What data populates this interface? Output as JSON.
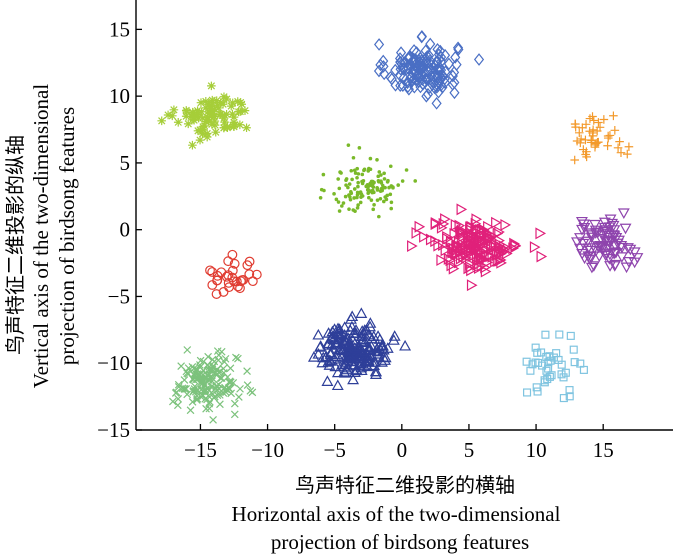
{
  "chart_data": {
    "type": "scatter",
    "title": "",
    "xlabel_cn": "鸟声特征二维投影的横轴",
    "xlabel_en_1": "Horizontal axis of the two-dimensional",
    "xlabel_en_2": "projection of birdsong features",
    "ylabel_cn": "鸟声特征二维投影的纵轴",
    "ylabel_en_1": "Vertical axis of the two-dimensional",
    "ylabel_en_2": "projection of birdsong features",
    "xlim": [
      -19.8,
      20.2
    ],
    "ylim": [
      -15,
      17.2
    ],
    "xticks": [
      -15,
      -10,
      -5,
      0,
      5,
      10,
      15
    ],
    "xtick_labels": [
      "−15",
      "−10",
      "−5",
      "0",
      "5",
      "10",
      "15"
    ],
    "yticks": [
      -15,
      -10,
      -5,
      0,
      5,
      10,
      15
    ],
    "ytick_labels": [
      "−15",
      "−10",
      "−5",
      "0",
      "5",
      "10",
      "15"
    ],
    "grid": false,
    "legend": "none",
    "series": [
      {
        "marker": "diamond",
        "color": "#4A6FC4",
        "center": [
          1.5,
          12.0
        ],
        "spread": [
          2.4,
          1.6
        ],
        "count": 150
      },
      {
        "marker": "star",
        "color": "#A6CE39",
        "center": [
          -14.0,
          8.5
        ],
        "spread": [
          2.5,
          1.4
        ],
        "count": 90
      },
      {
        "marker": "plus",
        "color": "#F39A2C",
        "center": [
          14.5,
          7.0
        ],
        "spread": [
          2.0,
          1.3
        ],
        "count": 45
      },
      {
        "marker": "dot",
        "color": "#7AB929",
        "center": [
          -2.5,
          3.3
        ],
        "spread": [
          2.5,
          1.8
        ],
        "count": 130
      },
      {
        "marker": "triangle-right",
        "color": "#E0217A",
        "center": [
          5.5,
          -1.2
        ],
        "spread": [
          3.0,
          1.5
        ],
        "count": 180
      },
      {
        "marker": "triangle-down",
        "color": "#8E44AD",
        "center": [
          15.0,
          -1.0
        ],
        "spread": [
          2.0,
          1.5
        ],
        "count": 80
      },
      {
        "marker": "circle",
        "color": "#E03C31",
        "center": [
          -12.5,
          -3.5
        ],
        "spread": [
          1.8,
          1.2
        ],
        "count": 30
      },
      {
        "marker": "triangle-up",
        "color": "#2E3F99",
        "center": [
          -3.5,
          -9.0
        ],
        "spread": [
          2.4,
          1.6
        ],
        "count": 190
      },
      {
        "marker": "x",
        "color": "#7CC27C",
        "center": [
          -14.5,
          -11.5
        ],
        "spread": [
          2.1,
          1.7
        ],
        "count": 160
      },
      {
        "marker": "square",
        "color": "#7FC4E0",
        "center": [
          11.5,
          -10.0
        ],
        "spread": [
          1.8,
          1.6
        ],
        "count": 40
      }
    ]
  }
}
